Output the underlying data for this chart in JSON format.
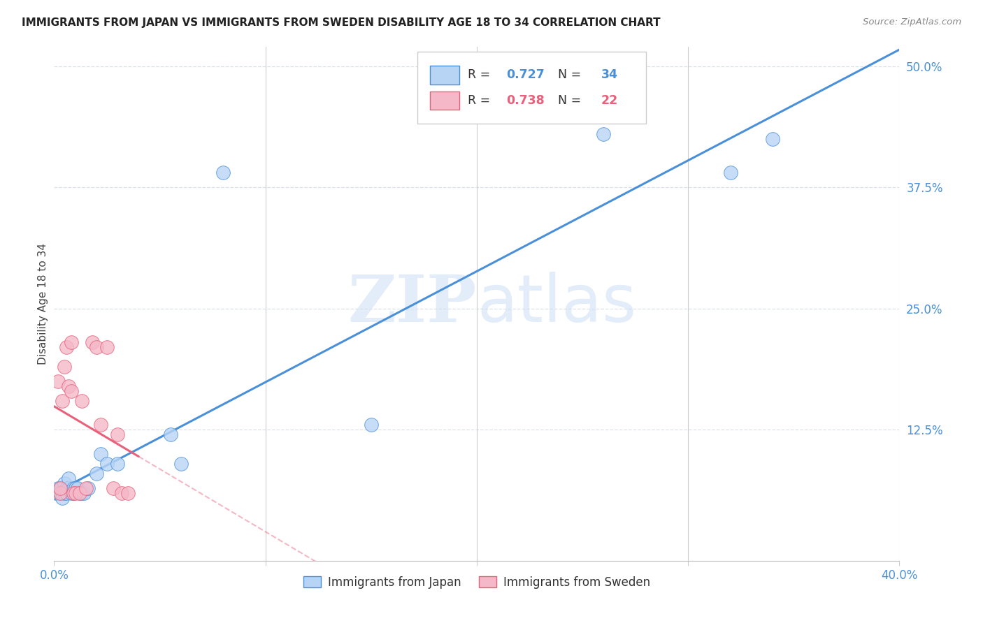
{
  "title": "IMMIGRANTS FROM JAPAN VS IMMIGRANTS FROM SWEDEN DISABILITY AGE 18 TO 34 CORRELATION CHART",
  "source": "Source: ZipAtlas.com",
  "ylabel": "Disability Age 18 to 34",
  "xlim": [
    0.0,
    0.4
  ],
  "ylim": [
    -0.01,
    0.52
  ],
  "yticks_right": [
    0.0,
    0.125,
    0.25,
    0.375,
    0.5
  ],
  "yticklabels_right": [
    "",
    "12.5%",
    "25.0%",
    "37.5%",
    "50.0%"
  ],
  "japan_R": 0.727,
  "japan_N": 34,
  "sweden_R": 0.738,
  "sweden_N": 22,
  "japan_color": "#b8d4f5",
  "sweden_color": "#f5b8c8",
  "japan_line_color": "#4a90d9",
  "sweden_line_color": "#e8607a",
  "japan_scatter_x": [
    0.001,
    0.002,
    0.002,
    0.003,
    0.003,
    0.004,
    0.004,
    0.005,
    0.005,
    0.006,
    0.006,
    0.007,
    0.007,
    0.008,
    0.009,
    0.009,
    0.01,
    0.01,
    0.011,
    0.012,
    0.013,
    0.014,
    0.016,
    0.02,
    0.022,
    0.025,
    0.03,
    0.055,
    0.06,
    0.08,
    0.15,
    0.26,
    0.32,
    0.34
  ],
  "japan_scatter_y": [
    0.06,
    0.06,
    0.065,
    0.06,
    0.065,
    0.06,
    0.055,
    0.06,
    0.07,
    0.065,
    0.06,
    0.065,
    0.075,
    0.06,
    0.065,
    0.06,
    0.065,
    0.065,
    0.065,
    0.06,
    0.06,
    0.06,
    0.065,
    0.08,
    0.1,
    0.09,
    0.09,
    0.12,
    0.09,
    0.39,
    0.13,
    0.43,
    0.39,
    0.425
  ],
  "sweden_scatter_x": [
    0.002,
    0.003,
    0.003,
    0.004,
    0.005,
    0.006,
    0.007,
    0.008,
    0.008,
    0.009,
    0.01,
    0.012,
    0.013,
    0.015,
    0.018,
    0.02,
    0.022,
    0.025,
    0.028,
    0.03,
    0.032,
    0.035
  ],
  "sweden_scatter_y": [
    0.175,
    0.06,
    0.065,
    0.155,
    0.19,
    0.21,
    0.17,
    0.165,
    0.215,
    0.06,
    0.06,
    0.06,
    0.155,
    0.065,
    0.215,
    0.21,
    0.13,
    0.21,
    0.065,
    0.12,
    0.06,
    0.06
  ],
  "watermark_zip": "ZIP",
  "watermark_atlas": "atlas",
  "background_color": "#ffffff",
  "grid_color": "#dde0e8"
}
